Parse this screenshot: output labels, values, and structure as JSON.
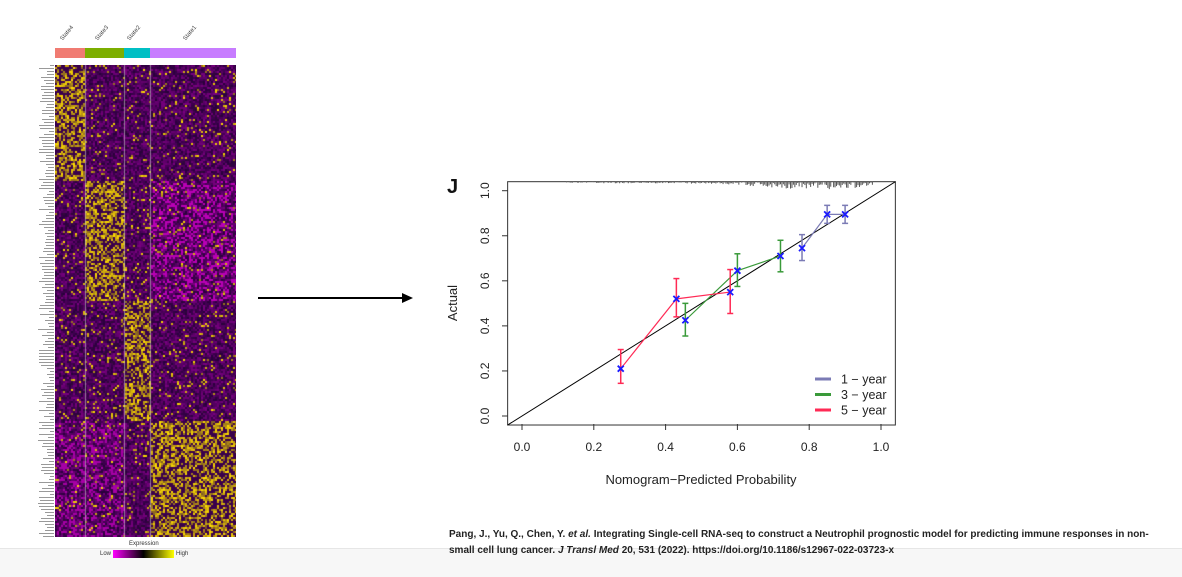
{
  "heatmap": {
    "states": [
      {
        "label": "State4",
        "color": "#f07b72"
      },
      {
        "label": "State3",
        "color": "#7cae00"
      },
      {
        "label": "State2",
        "color": "#00bfc4"
      },
      {
        "label": "State1",
        "color": "#c77cff"
      }
    ],
    "legend": {
      "title": "Expression",
      "low": "Low",
      "high": "High",
      "colors": [
        "#ff00ff",
        "#000000",
        "#ffff00"
      ]
    }
  },
  "chart_data": {
    "type": "line",
    "panel_label": "J",
    "xlabel": "Nomogram−Predicted Probability",
    "ylabel": "Actual",
    "xlim": [
      -0.04,
      1.04
    ],
    "ylim": [
      -0.04,
      1.04
    ],
    "xticks": [
      "0.0",
      "0.2",
      "0.4",
      "0.6",
      "0.8",
      "1.0"
    ],
    "yticks": [
      "0.0",
      "0.2",
      "0.4",
      "0.6",
      "0.8",
      "1.0"
    ],
    "reference_line": "diagonal y = x",
    "legend_position": "bottom-right",
    "point_marker_color": "#1a1aff",
    "series": [
      {
        "name": "1 − year",
        "color": "#7b7bb5",
        "points": [
          {
            "x": 0.78,
            "y": 0.745,
            "lo": 0.69,
            "hi": 0.805
          },
          {
            "x": 0.85,
            "y": 0.895,
            "lo": 0.855,
            "hi": 0.935
          },
          {
            "x": 0.9,
            "y": 0.895,
            "lo": 0.855,
            "hi": 0.935
          }
        ]
      },
      {
        "name": "3 − year",
        "color": "#3a9a3a",
        "points": [
          {
            "x": 0.455,
            "y": 0.425,
            "lo": 0.355,
            "hi": 0.5
          },
          {
            "x": 0.6,
            "y": 0.645,
            "lo": 0.575,
            "hi": 0.72
          },
          {
            "x": 0.72,
            "y": 0.71,
            "lo": 0.64,
            "hi": 0.78
          }
        ]
      },
      {
        "name": "5 − year",
        "color": "#ff2a55",
        "points": [
          {
            "x": 0.275,
            "y": 0.21,
            "lo": 0.145,
            "hi": 0.295
          },
          {
            "x": 0.43,
            "y": 0.52,
            "lo": 0.44,
            "hi": 0.61
          },
          {
            "x": 0.58,
            "y": 0.55,
            "lo": 0.455,
            "hi": 0.65
          }
        ]
      }
    ]
  },
  "citation": {
    "authors": "Pang, J., Yu, Q., Chen, Y.",
    "etal": "et al.",
    "title": "Integrating Single-cell RNA-seq to construct a Neutrophil prognostic model for predicting immune responses in non-small cell lung cancer.",
    "journal": "J Transl Med",
    "rest": "20, 531 (2022). https://doi.org/10.1186/s12967-022-03723-x"
  }
}
